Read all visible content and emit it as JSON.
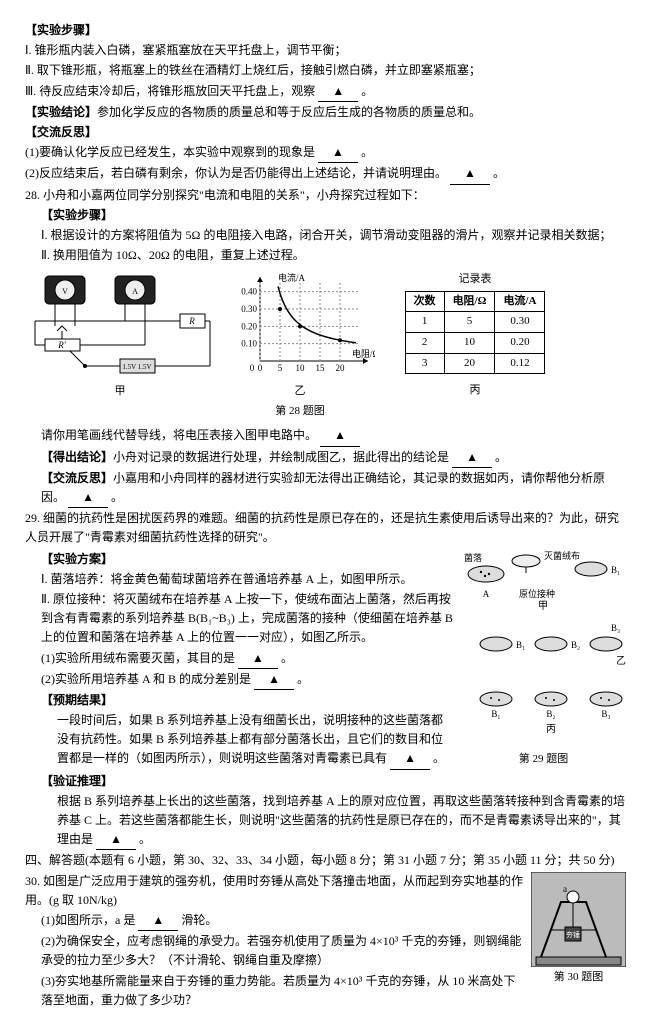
{
  "exp_steps_head": "【实验步骤】",
  "step1": "Ⅰ. 锥形瓶内装入白磷，塞紧瓶塞放在天平托盘上，调节平衡；",
  "step2": "Ⅱ. 取下锥形瓶，将瓶塞上的铁丝在酒精灯上烧红后，接触引燃白磷，并立即塞紧瓶塞；",
  "step3": "Ⅲ. 待反应结束冷却后，将锥形瓶放回天平托盘上，观察",
  "exp_concl_head": "【实验结论】",
  "exp_concl": "参加化学反应的各物质的质量总和等于反应后生成的各物质的质量总和。",
  "reflect_head": "【交流反思】",
  "reflect1": "(1)要确认化学反应已经发生，本实验中观察到的现象是",
  "reflect2": "(2)反应结束后，若白磷有剩余，你认为是否仍能得出上述结论，并请说明理由。",
  "q28_head": "28. 小舟和小嘉两位同学分别探究\"电流和电阻的关系\"，小舟探究过程如下：",
  "q28_exp_head": "【实验步骤】",
  "q28_s1": "Ⅰ. 根据设计的方案将阻值为 5Ω 的电阻接入电路，闭合开关，调节滑动变阻器的滑片，观察并记录相关数据；",
  "q28_s2": "Ⅱ. 换用阻值为 10Ω、20Ω 的电阻，重复上述过程。",
  "chart": {
    "type": "line",
    "title_y": "电流/A",
    "title_x": "电阻/Ω",
    "xlim": [
      0,
      25
    ],
    "ylim": [
      0,
      0.45
    ],
    "xticks": [
      0,
      5,
      10,
      15,
      20
    ],
    "yticks": [
      0.1,
      0.2,
      0.3,
      0.4
    ],
    "points": [
      [
        5,
        0.3
      ],
      [
        10,
        0.2
      ],
      [
        20,
        0.12
      ]
    ],
    "curve_color": "#000000",
    "grid_color": "#888888",
    "bg": "#ffffff",
    "label_fontsize": 9
  },
  "table": {
    "title": "记录表",
    "cols": [
      "次数",
      "电阻/Ω",
      "电流/A"
    ],
    "rows": [
      [
        "1",
        "5",
        "0.30"
      ],
      [
        "2",
        "10",
        "0.20"
      ],
      [
        "3",
        "20",
        "0.12"
      ]
    ]
  },
  "fig28_labels": {
    "left": "甲",
    "mid": "乙",
    "right": "丙",
    "caption": "第 28 题图"
  },
  "q28_line1": "请你用笔画线代替导线，将电压表接入图甲电路中。",
  "q28_concl_head": "【得出结论】",
  "q28_concl": "小舟对记录的数据进行处理，并绘制成图乙，据此得出的结论是",
  "q28_ref_head": "【交流反思】",
  "q28_ref": "小嘉用和小舟同样的器材进行实验却无法得出正确结论，其记录的数据如丙，请你帮他分析原因。",
  "q29_head": "29. 细菌的抗药性是困扰医药界的难题。细菌的抗药性是原已存在的，还是抗生素使用后诱导出来的？为此，研究人员开展了\"青霉素对细菌抗药性选择的研究\"。",
  "q29_plan_head": "【实验方案】",
  "q29_s1a": "Ⅰ. 菌落培养：将金黄色葡萄球菌培养在普通培养基 A 上，如图甲所示。",
  "q29_s2a": "Ⅱ. 原位接种：将灭菌绒布在培养基 A 上按一下，使绒布面沾上菌落，然后再按到含有青霉素的系列培养基 B(B₁~B₃) 上，完成菌落的接种（使细菌在培养基 B 上的位置和菌落在培养基 A 上的位置一一对应），如图乙所示。",
  "q29_q1": "(1)实验所用绒布需要灭菌，其目的是",
  "q29_q2": "(2)实验所用培养基 A 和 B 的成分差别是",
  "q29_pred_head": "【预期结果】",
  "q29_pred": "一段时间后，如果 B 系列培养基上没有细菌长出，说明接种的这些菌落都没有抗药性。如果 B 系列培养基上都有部分菌落长出，且它们的数目和位置都是一样的（如图丙所示），则说明这些菌落对青霉素已具有",
  "q29_ver_head": "【验证推理】",
  "q29_ver": "根据 B 系列培养基上长出的这些菌落，找到培养基 A 上的原对应位置，再取这些菌落转接种到含青霉素的培养基 C 上。若这些菌落都能生长，则说明\"这些菌落的抗药性是原已存在的，而不是青霉素诱导出来的\"，其理由是",
  "fig29": {
    "labels": {
      "dish": "菌落",
      "cloth": "灭菌绒布",
      "pos": "原位接种",
      "A": "A",
      "B1": "B₁",
      "B2": "B₂",
      "B3": "B₃",
      "jia": "甲",
      "yi": "乙",
      "bing": "丙"
    },
    "caption": "第 29 题图"
  },
  "sec4_head": "四、解答题(本题有 6 小题，第 30、32、33、34 小题，每小题 8 分；第 31 小题 7 分；第 35 小题 11 分；共 50 分)",
  "q30_head": "30. 如图是广泛应用于建筑的强夯机，使用时夯锤从高处下落撞击地面，从而起到夯实地基的作用。(g 取 10N/kg)",
  "q30_q1a": "(1)如图所示，a 是",
  "q30_q1b": "滑轮。",
  "q30_q2": "(2)为确保安全，应考虑钢绳的承受力。若强夯机使用了质量为 4×10³ 千克的夯锤，则钢绳能承受的拉力至少多大？（不计滑轮、钢绳自重及摩擦）",
  "q30_q3": "(3)夯实地基所需能量来自于夯锤的重力势能。若质量为 4×10³ 千克的夯锤，从 10 米高处下落至地面，重力做了多少功？",
  "fig30_caption": "第 30 题图",
  "triangle": "▲",
  "period": "。"
}
